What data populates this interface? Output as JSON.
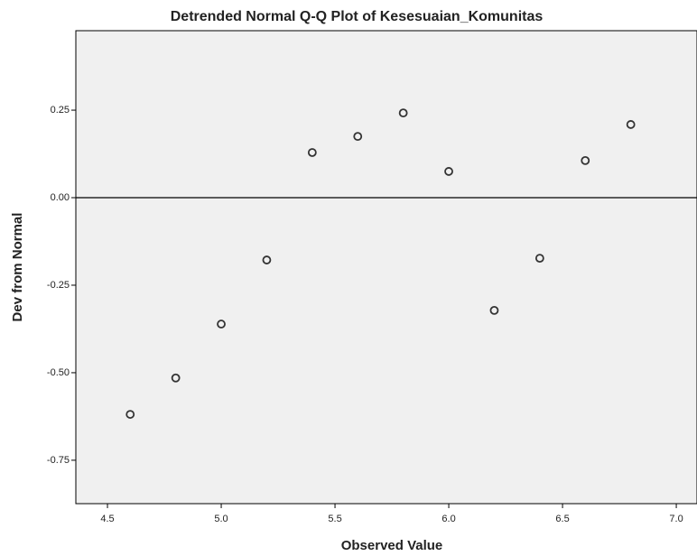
{
  "chart_data": {
    "type": "scatter",
    "title": "Detrended Normal Q-Q Plot of Kesesuaian_Komunitas",
    "x_label": "Observed Value",
    "y_label": "Dev from Normal",
    "x": [
      4.6,
      4.8,
      5.0,
      5.2,
      5.4,
      5.6,
      5.8,
      6.0,
      6.2,
      6.4,
      6.6,
      6.8
    ],
    "values": [
      -0.619,
      -0.515,
      -0.361,
      -0.178,
      0.129,
      0.175,
      0.242,
      0.075,
      -0.322,
      -0.173,
      0.106,
      0.209
    ],
    "color": "#333333",
    "xlim": [
      4.361,
      7.091
    ],
    "ylim": [
      -0.874,
      0.477
    ],
    "xticks": [
      4.5,
      {
        "value": 5,
        "label": "5.0"
      },
      5.5,
      {
        "value": 6,
        "label": "6.0"
      },
      6.5,
      {
        "value": 7,
        "label": "7.0"
      }
    ],
    "yticks": [
      0.25,
      {
        "value": 0,
        "label": "0.00"
      },
      -0.25,
      {
        "value": -0.5,
        "label": "-0.50"
      },
      -0.75
    ],
    "reference_line": 0
  }
}
